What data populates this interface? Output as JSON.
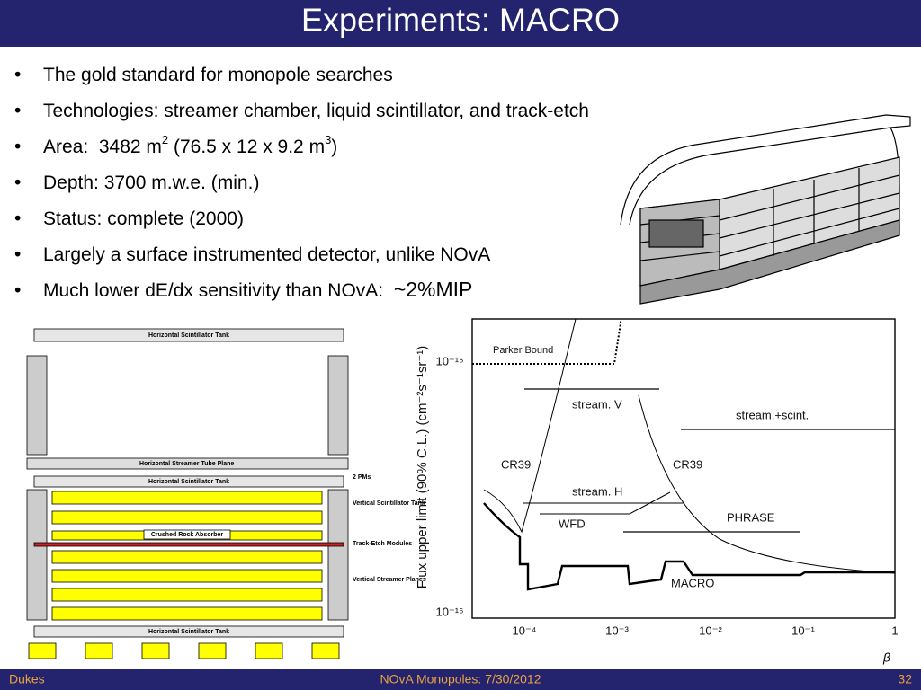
{
  "header": {
    "title": "Experiments:  MACRO"
  },
  "bullets": [
    [
      "The gold standard for monopole searches"
    ],
    [
      "Technologies:  streamer chamber, liquid scintillator, and track-etch"
    ],
    [
      "Area:  3482 m",
      "2",
      " (76.5 x 12 x 9.2 m",
      "3",
      ")"
    ],
    [
      "Depth:  3700 m.w.e. (min.)"
    ],
    [
      "Status:  complete (2000)"
    ],
    [
      "Largely a surface instrumented detector, unlike NOvA"
    ],
    [
      "Much lower dE/dx sensitivity than NOvA:  ",
      "~2%MIP"
    ]
  ],
  "detector_diagram": {
    "labels": [
      "Horizontal Scintillator Tank",
      "Horizontal Streamer Tube Plane",
      "Horizontal Scintillator Tank",
      "2 PMs",
      "Vertical Scintillator Tank",
      "Crushed Rock Absorber",
      "Track-Etch Modules",
      "Vertical Streamer Planes",
      "Horizontal Scintillator Tank"
    ]
  },
  "plot": {
    "y_label": "Flux upper limit (90% C.L.)  (cm⁻²s⁻¹sr⁻¹)",
    "x_label": "β",
    "yticks": [
      "10⁻¹⁵",
      "10⁻¹⁶"
    ],
    "xticks": [
      "10⁻⁴",
      "10⁻³",
      "10⁻²",
      "10⁻¹",
      "1"
    ],
    "curve_labels": [
      "Parker Bound",
      "stream. V",
      "stream.+scint.",
      "CR39",
      "CR39",
      "stream. H",
      "WFD",
      "PHRASE",
      "MACRO"
    ]
  },
  "footer": {
    "left": "Dukes",
    "center": "NOvA Monopoles:  7/30/2012",
    "right": "32"
  }
}
